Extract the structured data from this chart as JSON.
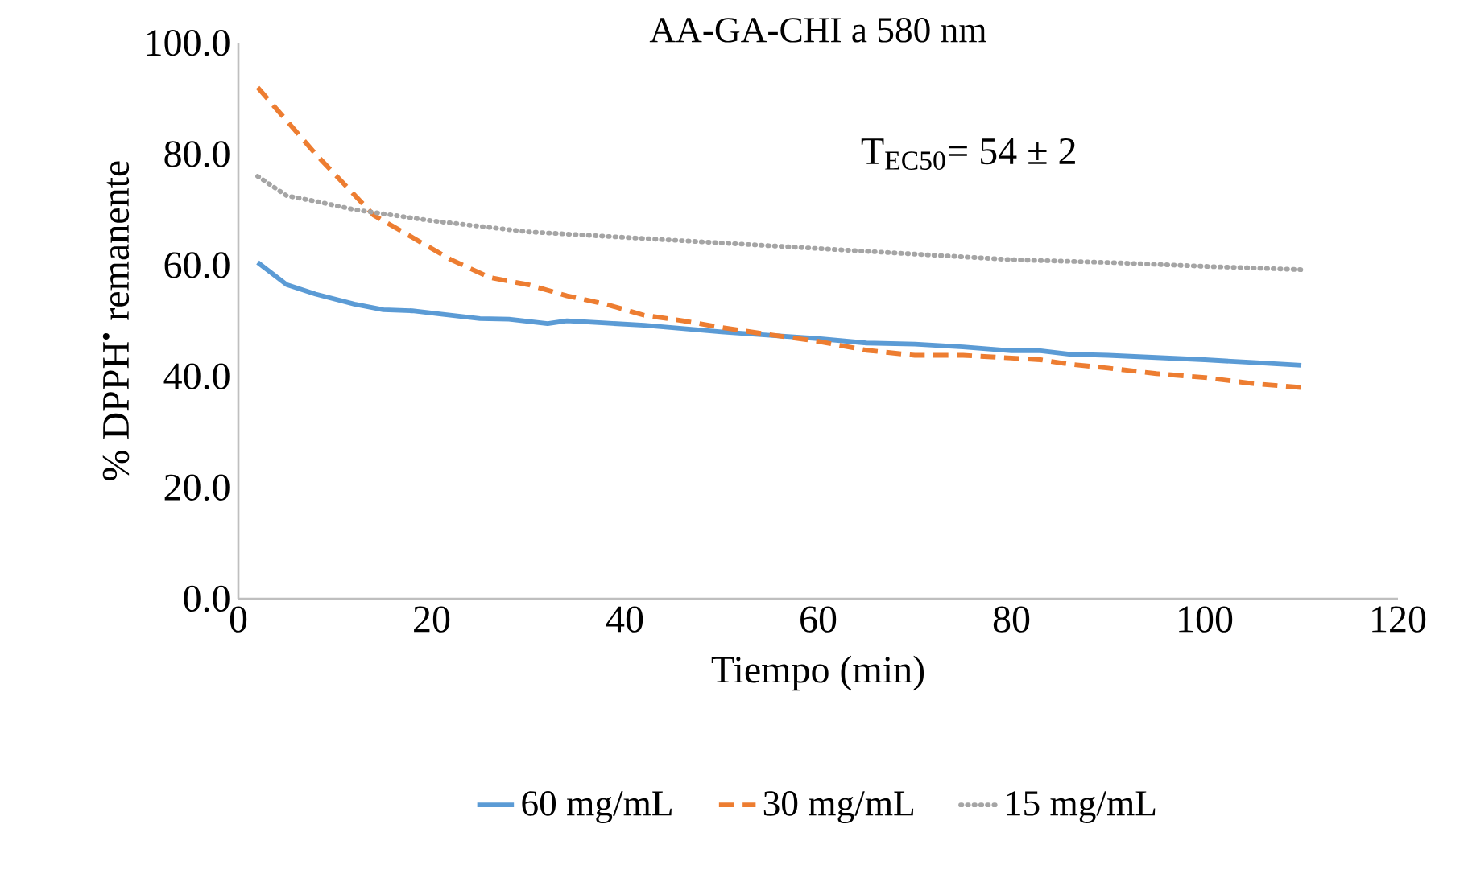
{
  "chart_data": {
    "type": "line",
    "title": "AA-GA-CHI a 580 nm",
    "xlabel": "Tiempo (min)",
    "ylabel": "% DPPH$^{•}$ remanente",
    "annotations": [
      "T$_{EC50}$= 54 ± 2"
    ],
    "xlim": [
      0,
      120
    ],
    "xticks": [
      0,
      20,
      40,
      60,
      80,
      100,
      120
    ],
    "ylim": [
      0,
      100
    ],
    "yticks": [
      {
        "value": 0,
        "label": "0.0"
      },
      {
        "value": 20,
        "label": "20.0"
      },
      {
        "value": 40,
        "label": "40.0"
      },
      {
        "value": 60,
        "label": "60.0"
      },
      {
        "value": 80,
        "label": "80.0"
      },
      {
        "value": 100,
        "label": "100.0"
      }
    ],
    "grid": false,
    "legend": "bottom",
    "marker": "none",
    "series": [
      {
        "name": "60 mg/mL",
        "color": "#5b9bd5",
        "line_style": "solid",
        "x": [
          2,
          5,
          8,
          12,
          15,
          18,
          21,
          25,
          28,
          32,
          34,
          38,
          42,
          46,
          50,
          55,
          60,
          65,
          70,
          75,
          80,
          83,
          86,
          90,
          95,
          100,
          105,
          110
        ],
        "values": [
          60.5,
          56.5,
          54.8,
          53,
          52,
          51.8,
          51.2,
          50.4,
          50.3,
          49.5,
          50,
          49.6,
          49.2,
          48.6,
          48,
          47.4,
          46.8,
          46,
          45.8,
          45.3,
          44.6,
          44.6,
          44,
          43.8,
          43.4,
          43,
          42.5,
          42
        ]
      },
      {
        "name": "30 mg/mL",
        "color": "#ed7d31",
        "line_style": "dashed",
        "x": [
          2,
          5,
          8,
          11,
          14,
          18,
          22,
          26,
          30,
          34,
          38,
          42,
          46,
          50,
          55,
          60,
          65,
          70,
          75,
          80,
          83,
          86,
          90,
          95,
          100,
          105,
          110
        ],
        "values": [
          92,
          86,
          80,
          74.5,
          69,
          65,
          61,
          57.8,
          56.5,
          54.5,
          53,
          51,
          50,
          48.8,
          47.5,
          46.3,
          44.7,
          43.8,
          43.8,
          43.3,
          43,
          42.2,
          41.5,
          40.5,
          39.8,
          38.7,
          38
        ]
      },
      {
        "name": "15 mg/mL",
        "color": "#a5a5a5",
        "line_style": "dotted",
        "x": [
          2,
          5,
          8,
          12,
          16,
          20,
          25,
          30,
          35,
          40,
          50,
          60,
          70,
          80,
          90,
          100,
          110
        ],
        "values": [
          76,
          72.5,
          71.5,
          70,
          69,
          68,
          67,
          66,
          65.5,
          65,
          64,
          63,
          62,
          61,
          60.5,
          59.8,
          59.2
        ]
      }
    ]
  }
}
